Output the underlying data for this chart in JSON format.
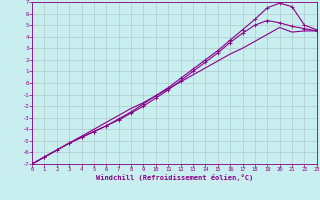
{
  "xlabel": "Windchill (Refroidissement éolien,°C)",
  "bg_color": "#c8eef0",
  "grid_color": "#b0c8c8",
  "line_color": "#880088",
  "xlim": [
    0,
    23
  ],
  "ylim": [
    -7,
    7
  ],
  "xticks": [
    0,
    1,
    2,
    3,
    4,
    5,
    6,
    7,
    8,
    9,
    10,
    11,
    12,
    13,
    14,
    15,
    16,
    17,
    18,
    19,
    20,
    21,
    22,
    23
  ],
  "yticks": [
    -7,
    -6,
    -5,
    -4,
    -3,
    -2,
    -1,
    0,
    1,
    2,
    3,
    4,
    5,
    6,
    7
  ],
  "line1_x": [
    0,
    1,
    2,
    3,
    4,
    5,
    6,
    7,
    8,
    9,
    10,
    11,
    12,
    13,
    14,
    15,
    16,
    17,
    18,
    19,
    20,
    21,
    22,
    23
  ],
  "line1_y": [
    -7,
    -6.4,
    -5.8,
    -5.2,
    -4.6,
    -4.0,
    -3.4,
    -2.8,
    -2.2,
    -1.7,
    -1.1,
    -0.5,
    0.1,
    0.7,
    1.3,
    1.9,
    2.5,
    3.0,
    3.6,
    4.2,
    4.8,
    4.4,
    4.5,
    4.5
  ],
  "line2_x": [
    0,
    1,
    2,
    3,
    4,
    5,
    6,
    7,
    8,
    9,
    10,
    11,
    12,
    13,
    14,
    15,
    16,
    17,
    18,
    19,
    20,
    21,
    22,
    23
  ],
  "line2_y": [
    -7,
    -6.4,
    -5.8,
    -5.2,
    -4.7,
    -4.2,
    -3.7,
    -3.1,
    -2.5,
    -1.8,
    -1.1,
    -0.4,
    0.4,
    1.2,
    2.0,
    2.8,
    3.7,
    4.6,
    5.5,
    6.5,
    6.9,
    6.6,
    5.0,
    4.6
  ],
  "line3_x": [
    0,
    1,
    2,
    3,
    4,
    5,
    6,
    7,
    8,
    9,
    10,
    11,
    12,
    13,
    14,
    15,
    16,
    17,
    18,
    19,
    20,
    21,
    22,
    23
  ],
  "line3_y": [
    -7,
    -6.4,
    -5.8,
    -5.2,
    -4.7,
    -4.2,
    -3.7,
    -3.2,
    -2.6,
    -2.0,
    -1.3,
    -0.6,
    0.2,
    1.0,
    1.8,
    2.6,
    3.5,
    4.3,
    5.0,
    5.4,
    5.2,
    4.9,
    4.7,
    4.5
  ]
}
